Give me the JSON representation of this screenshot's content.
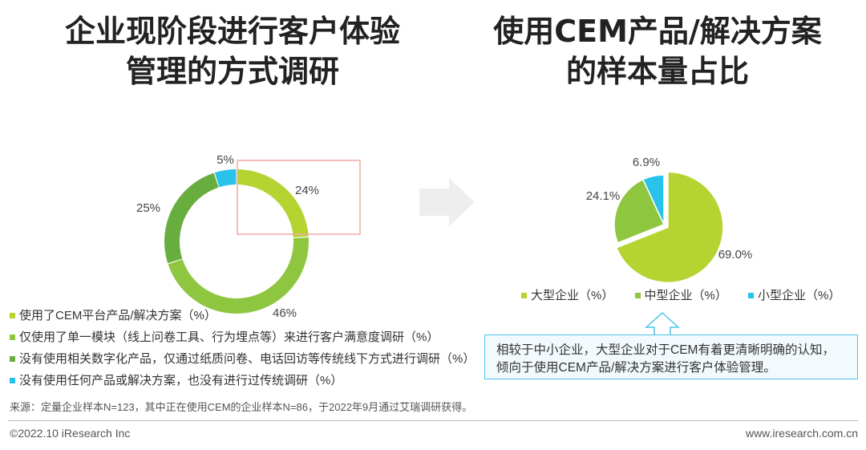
{
  "titles": {
    "left": [
      "企业现阶段进行客户体验",
      "管理的方式调研"
    ],
    "right": [
      "使用CEM产品/解决方案",
      "的样本量占比"
    ]
  },
  "colors": {
    "light_green": "#b5d431",
    "mid_green": "#8ec63f",
    "dark_green": "#68ae3f",
    "cyan": "#29c2eb",
    "highlight_box": "#f2a9a4",
    "arrow": "#eeeeee",
    "callout_border": "#4cc4e6"
  },
  "chart_data": [
    {
      "type": "donut",
      "series": [
        {
          "name": "使用了CEM平台产品/解决方案（%）",
          "value": 24,
          "label": "24%",
          "color": "#b5d431"
        },
        {
          "name": "仅使用了单一模块（线上问卷工具、行为埋点等）来进行客户满意度调研（%）",
          "value": 46,
          "label": "46%",
          "color": "#8ec63f"
        },
        {
          "name": "没有使用相关数字化产品，仅通过纸质问卷、电话回访等传统线下方式进行调研（%）",
          "value": 25,
          "label": "25%",
          "color": "#68ae3f"
        },
        {
          "name": "没有使用任何产品或解决方案，也没有进行过传统调研（%）",
          "value": 5,
          "label": "5%",
          "color": "#29c2eb"
        }
      ]
    },
    {
      "type": "pie",
      "series": [
        {
          "name": "大型企业（%）",
          "value": 69.0,
          "label": "69.0%",
          "color": "#b5d431"
        },
        {
          "name": "中型企业（%）",
          "value": 24.1,
          "label": "24.1%",
          "color": "#8ec63f"
        },
        {
          "name": "小型企业（%）",
          "value": 6.9,
          "label": "6.9%",
          "color": "#29c2eb"
        }
      ]
    }
  ],
  "callout": "相较于中小企业，大型企业对于CEM有着更清晰明确的认知，倾向于使用CEM产品/解决方案进行客户体验管理。",
  "source": "来源：定量企业样本N=123，其中正在使用CEM的企业样本N=86，于2022年9月通过艾瑞调研获得。",
  "footer": {
    "copyright": "©2022.10 iResearch Inc",
    "website": "www.iresearch.com.cn"
  }
}
